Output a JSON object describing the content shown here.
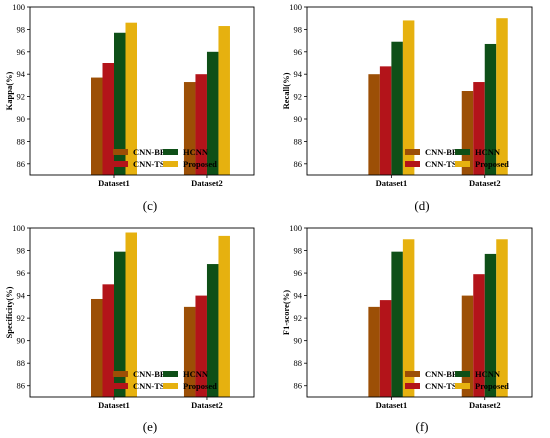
{
  "colors": {
    "CNN-BFO": "#9c4f06",
    "CNN-TSO": "#b3141a",
    "HCNN": "#0e4f17",
    "Proposed": "#e6b10f"
  },
  "chart_data": [
    {
      "type": "bar",
      "panel_label": "(c)",
      "ylabel": "Kappa(%)",
      "ylim": [
        85,
        100
      ],
      "yticks": [
        86,
        88,
        90,
        92,
        94,
        96,
        98,
        100
      ],
      "categories": [
        "Dataset1",
        "Dataset2"
      ],
      "series": [
        {
          "name": "CNN-BFO",
          "values": [
            93.7,
            93.3
          ]
        },
        {
          "name": "CNN-TSO",
          "values": [
            95.0,
            94.0
          ]
        },
        {
          "name": "HCNN",
          "values": [
            97.7,
            96.0
          ]
        },
        {
          "name": "Proposed",
          "values": [
            98.6,
            98.3
          ]
        }
      ],
      "legend_position": "bottom-right",
      "grid": false
    },
    {
      "type": "bar",
      "panel_label": "(d)",
      "ylabel": "Recall(%)",
      "ylim": [
        85,
        100
      ],
      "yticks": [
        86,
        88,
        90,
        92,
        94,
        96,
        98,
        100
      ],
      "categories": [
        "Dataset1",
        "Dataset2"
      ],
      "series": [
        {
          "name": "CNN-BFO",
          "values": [
            94.0,
            92.5
          ]
        },
        {
          "name": "CNN-TSO",
          "values": [
            94.7,
            93.3
          ]
        },
        {
          "name": "HCNN",
          "values": [
            96.9,
            96.7
          ]
        },
        {
          "name": "Proposed",
          "values": [
            98.8,
            99.0
          ]
        }
      ],
      "legend_position": "bottom-left",
      "grid": false
    },
    {
      "type": "bar",
      "panel_label": "(e)",
      "ylabel": "Specificity(%)",
      "ylim": [
        85,
        100
      ],
      "yticks": [
        86,
        88,
        90,
        92,
        94,
        96,
        98,
        100
      ],
      "categories": [
        "Dataset1",
        "Dataset2"
      ],
      "series": [
        {
          "name": "CNN-BFO",
          "values": [
            93.7,
            93.0
          ]
        },
        {
          "name": "CNN-TSO",
          "values": [
            95.0,
            94.0
          ]
        },
        {
          "name": "HCNN",
          "values": [
            97.9,
            96.8
          ]
        },
        {
          "name": "Proposed",
          "values": [
            99.6,
            99.3
          ]
        }
      ],
      "legend_position": "bottom-center",
      "grid": false
    },
    {
      "type": "bar",
      "panel_label": "(f)",
      "ylabel": "F1-score(%)",
      "ylim": [
        85,
        100
      ],
      "yticks": [
        86,
        88,
        90,
        92,
        94,
        96,
        98,
        100
      ],
      "categories": [
        "Dataset1",
        "Dataset2"
      ],
      "series": [
        {
          "name": "CNN-BFO",
          "values": [
            93.0,
            94.0
          ]
        },
        {
          "name": "CNN-TSO",
          "values": [
            93.6,
            95.9
          ]
        },
        {
          "name": "HCNN",
          "values": [
            97.9,
            97.7
          ]
        },
        {
          "name": "Proposed",
          "values": [
            99.0,
            99.0
          ]
        }
      ],
      "legend_position": "bottom-left",
      "grid": false
    }
  ]
}
